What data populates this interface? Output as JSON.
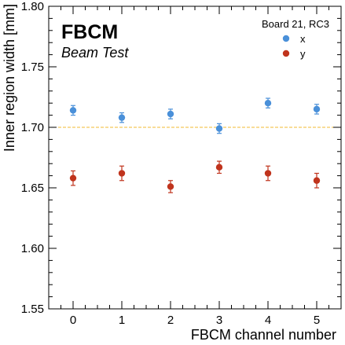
{
  "chart_data": {
    "type": "scatter",
    "experiment_label": "FBCM",
    "experiment_sublabel": "Beam Test",
    "title": "",
    "xlabel": "FBCM channel number",
    "ylabel": "Inner region width [mm]",
    "xlim": [
      -0.5,
      5.5
    ],
    "ylim": [
      1.55,
      1.8
    ],
    "x_ticks": [
      0,
      1,
      2,
      3,
      4,
      5
    ],
    "y_ticks": [
      1.55,
      1.6,
      1.65,
      1.7,
      1.75,
      1.8
    ],
    "y_tick_labels": [
      "1.55",
      "1.60",
      "1.65",
      "1.70",
      "1.75",
      "1.80"
    ],
    "legend_title": "Board 21, RC3",
    "legend_position": "top-right",
    "reference_line": {
      "y": 1.7,
      "color": "#f2b830",
      "style": "dashed"
    },
    "series": [
      {
        "name": "x",
        "color": "#4a90d9",
        "x": [
          0,
          1,
          2,
          3,
          4,
          5
        ],
        "y": [
          1.714,
          1.708,
          1.711,
          1.699,
          1.72,
          1.715
        ],
        "yerr": [
          0.004,
          0.004,
          0.004,
          0.004,
          0.004,
          0.004
        ]
      },
      {
        "name": "y",
        "color": "#c0341d",
        "x": [
          0,
          1,
          2,
          3,
          4,
          5
        ],
        "y": [
          1.658,
          1.662,
          1.651,
          1.667,
          1.662,
          1.656
        ],
        "yerr": [
          0.006,
          0.006,
          0.005,
          0.005,
          0.006,
          0.006
        ]
      }
    ]
  }
}
